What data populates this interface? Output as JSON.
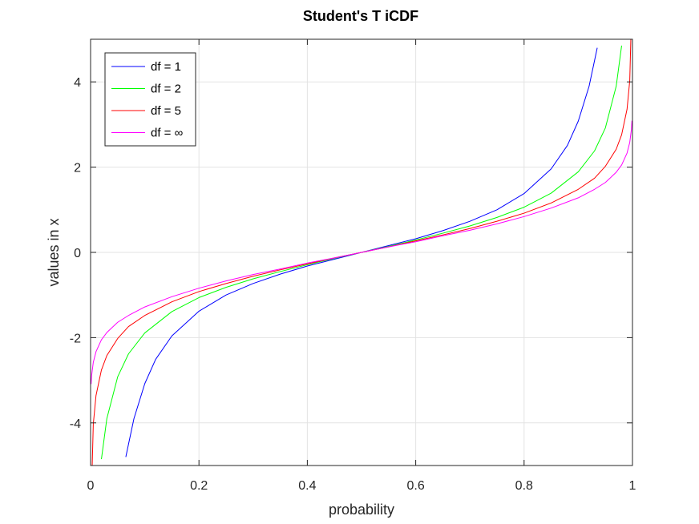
{
  "chart_data": {
    "type": "line",
    "title": "Student's T iCDF",
    "xlabel": "probability",
    "ylabel": "values in x",
    "xlim": [
      0,
      1
    ],
    "ylim": [
      -5,
      5
    ],
    "xticks": [
      0,
      0.2,
      0.4,
      0.6,
      0.8,
      1
    ],
    "xtick_labels": [
      "0",
      "0.2",
      "0.4",
      "0.6",
      "0.8",
      "1"
    ],
    "yticks": [
      -4,
      -2,
      0,
      2,
      4
    ],
    "ytick_labels": [
      "-4",
      "-2",
      "0",
      "2",
      "4"
    ],
    "grid": true,
    "legend_position": "top-left",
    "series": [
      {
        "name": "df = 1",
        "color": "#0000ff",
        "x": [
          0.065,
          0.07,
          0.08,
          0.1,
          0.12,
          0.15,
          0.2,
          0.25,
          0.3,
          0.35,
          0.4,
          0.45,
          0.5,
          0.55,
          0.6,
          0.65,
          0.7,
          0.75,
          0.8,
          0.85,
          0.88,
          0.9,
          0.92,
          0.93,
          0.935
        ],
        "y": [
          -4.8,
          -4.5,
          -3.9,
          -3.08,
          -2.51,
          -1.96,
          -1.38,
          -1.0,
          -0.73,
          -0.51,
          -0.32,
          -0.16,
          0,
          0.16,
          0.32,
          0.51,
          0.73,
          1.0,
          1.38,
          1.96,
          2.51,
          3.08,
          3.9,
          4.5,
          4.8
        ]
      },
      {
        "name": "df = 2",
        "color": "#00ff00",
        "x": [
          0.02,
          0.03,
          0.05,
          0.07,
          0.1,
          0.15,
          0.2,
          0.25,
          0.3,
          0.35,
          0.4,
          0.45,
          0.5,
          0.55,
          0.6,
          0.65,
          0.7,
          0.75,
          0.8,
          0.85,
          0.9,
          0.93,
          0.95,
          0.97,
          0.98
        ],
        "y": [
          -4.85,
          -3.9,
          -2.92,
          -2.38,
          -1.89,
          -1.39,
          -1.06,
          -0.82,
          -0.62,
          -0.45,
          -0.29,
          -0.14,
          0,
          0.14,
          0.29,
          0.45,
          0.62,
          0.82,
          1.06,
          1.39,
          1.89,
          2.38,
          2.92,
          3.9,
          4.85
        ]
      },
      {
        "name": "df = 5",
        "color": "#ff0000",
        "x": [
          0.003,
          0.005,
          0.01,
          0.02,
          0.03,
          0.05,
          0.07,
          0.1,
          0.15,
          0.2,
          0.25,
          0.3,
          0.35,
          0.4,
          0.45,
          0.5,
          0.55,
          0.6,
          0.65,
          0.7,
          0.75,
          0.8,
          0.85,
          0.9,
          0.93,
          0.95,
          0.97,
          0.98,
          0.99,
          0.995,
          0.997
        ],
        "y": [
          -5.0,
          -4.03,
          -3.36,
          -2.76,
          -2.42,
          -2.02,
          -1.74,
          -1.48,
          -1.16,
          -0.92,
          -0.73,
          -0.56,
          -0.41,
          -0.27,
          -0.13,
          0,
          0.13,
          0.27,
          0.41,
          0.56,
          0.73,
          0.92,
          1.16,
          1.48,
          1.74,
          2.02,
          2.42,
          2.76,
          3.36,
          4.03,
          5.0
        ]
      },
      {
        "name": "df = ∞",
        "color": "#ff00ff",
        "x": [
          0.001,
          0.002,
          0.005,
          0.01,
          0.02,
          0.03,
          0.05,
          0.07,
          0.1,
          0.15,
          0.2,
          0.25,
          0.3,
          0.35,
          0.4,
          0.45,
          0.5,
          0.55,
          0.6,
          0.65,
          0.7,
          0.75,
          0.8,
          0.85,
          0.9,
          0.93,
          0.95,
          0.97,
          0.98,
          0.99,
          0.995,
          0.998,
          0.999
        ],
        "y": [
          -3.09,
          -2.88,
          -2.58,
          -2.33,
          -2.05,
          -1.88,
          -1.64,
          -1.48,
          -1.28,
          -1.04,
          -0.84,
          -0.67,
          -0.52,
          -0.39,
          -0.25,
          -0.13,
          0,
          0.13,
          0.25,
          0.39,
          0.52,
          0.67,
          0.84,
          1.04,
          1.28,
          1.48,
          1.64,
          1.88,
          2.05,
          2.33,
          2.58,
          2.88,
          3.09
        ]
      }
    ]
  }
}
